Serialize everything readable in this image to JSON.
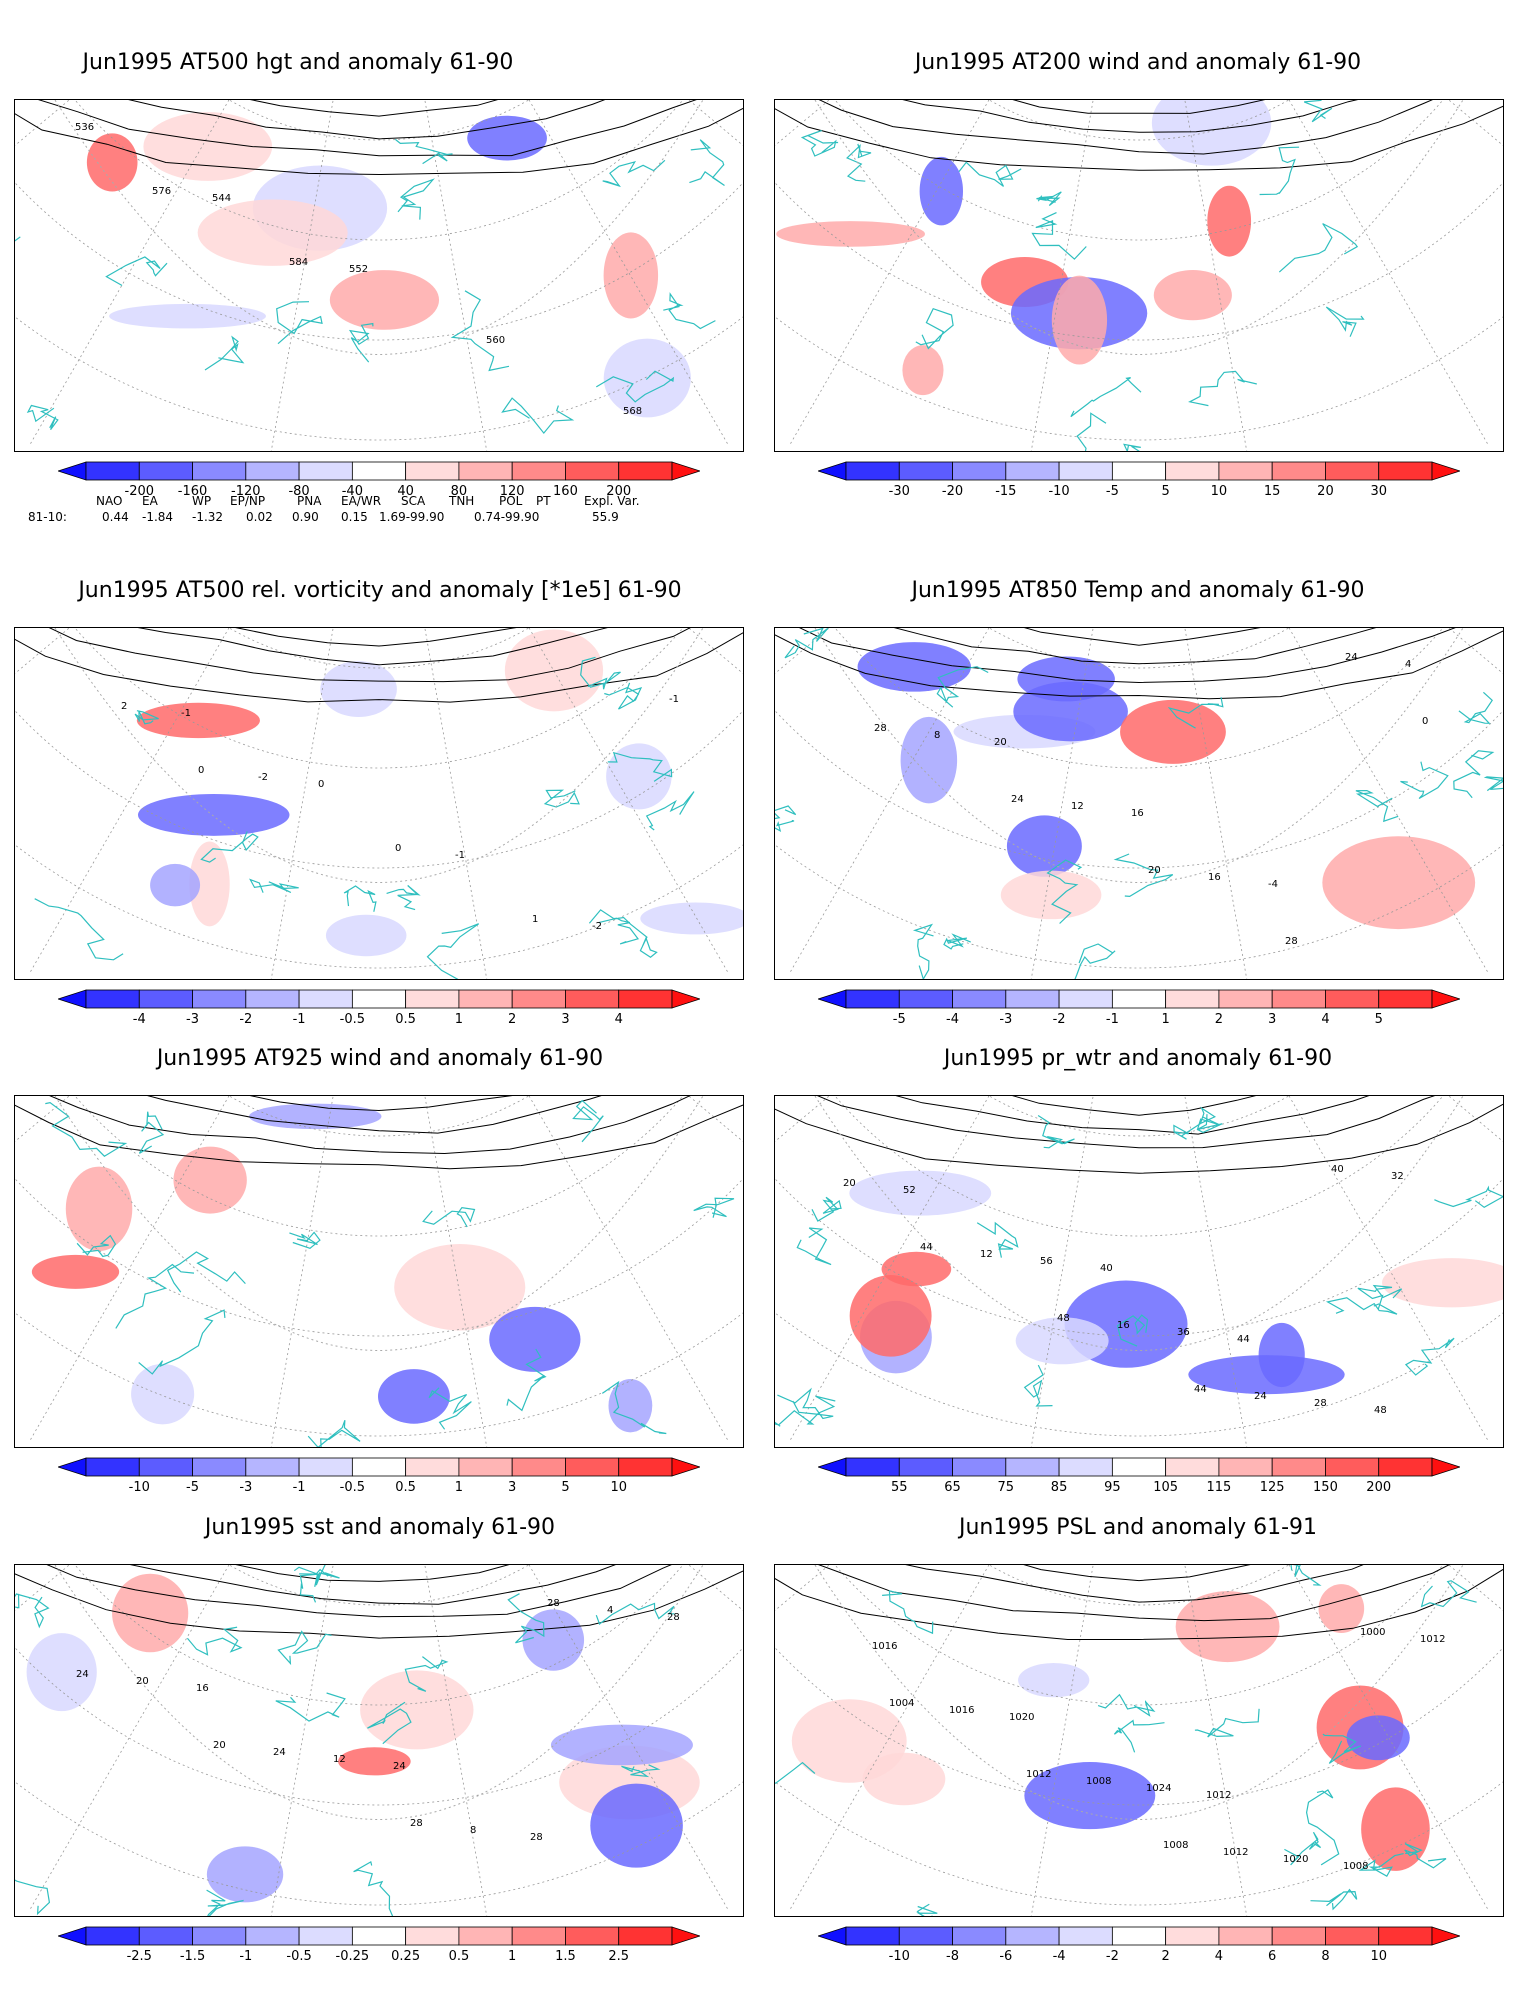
{
  "panels": [
    {
      "id": "p1",
      "title": "Jun1995 AT500 hgt and anomaly 61-90",
      "colorbar": {
        "labels": [
          "-200",
          "-160",
          "-120",
          "-80",
          "-40",
          "40",
          "80",
          "120",
          "160",
          "200"
        ]
      },
      "contour_labels": [
        "536",
        "544",
        "552",
        "560",
        "568",
        "576",
        "584"
      ]
    },
    {
      "id": "p2",
      "title": "Jun1995 AT200 wind and anomaly 61-90",
      "colorbar": {
        "labels": [
          "-30",
          "-20",
          "-15",
          "-10",
          "-5",
          "5",
          "10",
          "15",
          "20",
          "30"
        ]
      },
      "contour_labels": []
    },
    {
      "id": "p3",
      "title": "Jun1995 AT500 rel. vorticity and anomaly [*1e5] 61-90",
      "colorbar": {
        "labels": [
          "-4",
          "-3",
          "-2",
          "-1",
          "-0.5",
          "0.5",
          "1",
          "2",
          "3",
          "4"
        ]
      },
      "contour_labels": [
        "-1",
        "0",
        "-1",
        "-2",
        "2",
        "-2",
        "0",
        "1",
        "-1",
        "0"
      ]
    },
    {
      "id": "p4",
      "title": "Jun1995 AT850 Temp and anomaly 61-90",
      "colorbar": {
        "labels": [
          "-5",
          "-4",
          "-3",
          "-2",
          "-1",
          "1",
          "2",
          "3",
          "4",
          "5"
        ]
      },
      "contour_labels": [
        "20",
        "16",
        "-4",
        "4",
        "8",
        "12",
        "16",
        "24",
        "28",
        "24",
        "20",
        "28",
        "0"
      ]
    },
    {
      "id": "p5",
      "title": "Jun1995 AT925 wind and anomaly 61-90",
      "colorbar": {
        "labels": [
          "-10",
          "-5",
          "-3",
          "-1",
          "-0.5",
          "0.5",
          "1",
          "3",
          "5",
          "10"
        ]
      },
      "contour_labels": []
    },
    {
      "id": "p6",
      "title": "Jun1995 pr_wtr and anomaly 61-90",
      "colorbar": {
        "labels": [
          "55",
          "65",
          "75",
          "85",
          "95",
          "105",
          "115",
          "125",
          "150",
          "200"
        ]
      },
      "contour_labels": [
        "40",
        "44",
        "48",
        "52",
        "56",
        "36",
        "28",
        "20",
        "12",
        "16",
        "24",
        "32",
        "44",
        "48",
        "44",
        "40"
      ]
    },
    {
      "id": "p7",
      "title": "Jun1995 sst and anomaly 61-90",
      "colorbar": {
        "labels": [
          "-2.5",
          "-1.5",
          "-1",
          "-0.5",
          "-0.25",
          "0.25",
          "0.5",
          "1",
          "1.5",
          "2.5"
        ]
      },
      "contour_labels": [
        "24",
        "28",
        "28",
        "16",
        "12",
        "8",
        "4",
        "20",
        "24",
        "28",
        "28",
        "24",
        "20"
      ]
    },
    {
      "id": "p8",
      "title": "Jun1995 PSL and anomaly 61-91",
      "colorbar": {
        "labels": [
          "-10",
          "-8",
          "-6",
          "-4",
          "-2",
          "2",
          "4",
          "6",
          "8",
          "10"
        ]
      },
      "contour_labels": [
        "1012",
        "1008",
        "1016",
        "1020",
        "1024",
        "1020",
        "1012",
        "1016",
        "1008",
        "1012",
        "1000",
        "1004",
        "1012",
        "1008"
      ]
    }
  ],
  "teleconnections": {
    "headers": [
      "NAO",
      "EA",
      "WP",
      "EP/NP",
      "PNA",
      "EA/WR",
      "SCA",
      "TNH",
      "POL",
      "PT",
      "Expl. Var."
    ],
    "row_label": "81-10:",
    "values": [
      "0.44",
      "-1.84",
      "-1.32",
      "0.02",
      "0.90",
      "0.15",
      "1.69-99.90",
      "0.74-99.90",
      "55.9"
    ]
  },
  "colors": {
    "coastline": "#2fbfbf",
    "blue_strong": "#1c1cff",
    "blue_mid": "#6a6aff",
    "blue_light": "#a5a5ff",
    "blue_pale": "#d8d8ff",
    "red_pale": "#ffd8d8",
    "red_light": "#ffaaaa",
    "red_mid": "#ff6a6a",
    "red_strong": "#ff1c1c",
    "contour": "#000000"
  }
}
